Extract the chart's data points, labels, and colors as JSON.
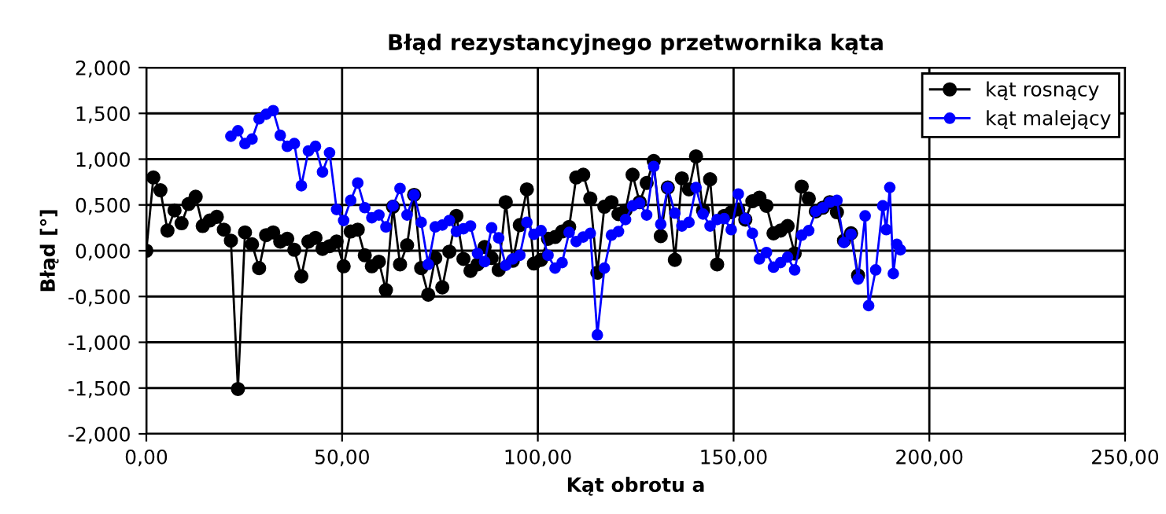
{
  "chart_data": {
    "type": "line",
    "title": "Błąd rezystancyjnego przetwornika kąta",
    "xlabel": "Kąt obrotu a",
    "ylabel": "Błąd [°]",
    "xlim": [
      0,
      250
    ],
    "xticks": [
      {
        "value": 0,
        "label": "0,00"
      },
      {
        "value": 50,
        "label": "50,00"
      },
      {
        "value": 100,
        "label": "100,00"
      },
      {
        "value": 150,
        "label": "150,00"
      },
      {
        "value": 200,
        "label": "200,00"
      },
      {
        "value": 250,
        "label": "250,00"
      }
    ],
    "ylim": [
      -2,
      2
    ],
    "yticks": [
      {
        "value": -2,
        "label": "-2,000"
      },
      {
        "value": -1.5,
        "label": "-1,500"
      },
      {
        "value": -1,
        "label": "-1,000"
      },
      {
        "value": -0.5,
        "label": "-0,500"
      },
      {
        "value": 0,
        "label": "0,000"
      },
      {
        "value": 0.5,
        "label": "0,500"
      },
      {
        "value": 1,
        "label": "1,000"
      },
      {
        "value": 1.5,
        "label": "1,500"
      },
      {
        "value": 2,
        "label": "2,000"
      }
    ],
    "grid": true,
    "legend": "top right",
    "marker": "circle",
    "line_style": "solid",
    "series": [
      {
        "name": "kąt rosnący",
        "color": "#000000",
        "x": [
          0,
          1.8,
          3.6,
          5.4,
          7.2,
          9,
          10.8,
          12.6,
          14.4,
          16.2,
          18,
          19.8,
          21.6,
          23.4,
          25.2,
          27,
          28.8,
          30.6,
          32.4,
          34.2,
          36,
          37.8,
          39.6,
          41.4,
          43.2,
          45,
          46.8,
          48.6,
          50.4,
          52.2,
          54,
          55.8,
          57.6,
          59.4,
          61.2,
          63,
          64.8,
          66.6,
          68.4,
          70.2,
          72,
          73.8,
          75.6,
          77.4,
          79.2,
          81,
          82.8,
          84.6,
          86.4,
          88.2,
          90,
          91.8,
          93.6,
          95.4,
          97.2,
          99,
          100.8,
          102.6,
          104.4,
          106.2,
          108,
          109.8,
          111.6,
          113.4,
          115.2,
          117,
          118.8,
          120.6,
          122.4,
          124.2,
          126,
          127.8,
          129.6,
          131.4,
          133.2,
          135,
          136.8,
          138.6,
          140.4,
          142.2,
          144,
          145.8,
          147.6,
          149.4,
          151.2,
          153,
          154.8,
          156.6,
          158.4,
          160.2,
          162,
          163.8,
          165.6,
          167.4,
          169.2,
          171,
          172.8,
          174.6,
          176.4,
          178.2,
          180,
          181.8
        ],
        "values": [
          0,
          0.8,
          0.66,
          0.22,
          0.44,
          0.3,
          0.51,
          0.59,
          0.27,
          0.33,
          0.37,
          0.23,
          0.11,
          -1.51,
          0.2,
          0.07,
          -0.19,
          0.17,
          0.2,
          0.1,
          0.13,
          0.01,
          -0.28,
          0.1,
          0.14,
          0.02,
          0.05,
          0.1,
          -0.17,
          0.21,
          0.23,
          -0.05,
          -0.17,
          -0.12,
          -0.43,
          0.48,
          -0.15,
          0.06,
          0.61,
          -0.19,
          -0.48,
          -0.08,
          -0.4,
          -0.01,
          0.38,
          -0.09,
          -0.22,
          -0.15,
          0.04,
          -0.08,
          -0.21,
          0.53,
          -0.11,
          0.28,
          0.67,
          -0.14,
          -0.1,
          0.13,
          0.15,
          0.21,
          0.26,
          0.8,
          0.83,
          0.57,
          -0.24,
          0.48,
          0.53,
          0.4,
          0.44,
          0.83,
          0.53,
          0.74,
          0.98,
          0.16,
          0.69,
          -0.1,
          0.79,
          0.67,
          1.03,
          0.44,
          0.78,
          -0.15,
          0.38,
          0.42,
          0.45,
          0.34,
          0.54,
          0.58,
          0.49,
          0.19,
          0.22,
          0.27,
          -0.03,
          0.7,
          0.57,
          0.43,
          0.47,
          0.53,
          0.42,
          0.11,
          0.19,
          -0.27
        ]
      },
      {
        "name": "kąt malejący",
        "color": "#0000ff",
        "x": [
          21.6,
          23.4,
          25.2,
          27,
          28.8,
          30.6,
          32.4,
          34.2,
          36,
          37.8,
          39.6,
          41.4,
          43.2,
          45,
          46.8,
          48.6,
          50.4,
          52.2,
          54,
          55.8,
          57.6,
          59.4,
          61.2,
          63,
          64.8,
          66.6,
          68.4,
          70.2,
          72,
          73.8,
          75.6,
          77.4,
          79.2,
          81,
          82.8,
          84.6,
          86.4,
          88.2,
          90,
          91.8,
          93.6,
          95.4,
          97.2,
          99,
          100.8,
          102.6,
          104.4,
          106.2,
          108,
          109.8,
          111.6,
          113.4,
          115.2,
          117,
          118.8,
          120.6,
          122.4,
          124.2,
          126,
          127.8,
          129.6,
          131.4,
          133.2,
          135,
          136.8,
          138.6,
          140.4,
          142.2,
          144,
          145.8,
          147.6,
          149.4,
          151.2,
          153,
          154.8,
          156.6,
          158.4,
          160.2,
          162,
          163.8,
          165.6,
          167.4,
          169.2,
          171,
          172.8,
          174.6,
          176.4,
          178.2,
          180,
          181.8,
          183.6,
          184.5,
          186.3,
          188.1,
          189,
          189.9,
          190.8,
          191.7,
          192.6
        ],
        "values": [
          1.25,
          1.31,
          1.17,
          1.22,
          1.44,
          1.49,
          1.53,
          1.26,
          1.14,
          1.17,
          0.71,
          1.09,
          1.14,
          0.86,
          1.07,
          0.45,
          0.33,
          0.55,
          0.74,
          0.47,
          0.36,
          0.39,
          0.26,
          0.49,
          0.68,
          0.39,
          0.61,
          0.31,
          -0.15,
          0.26,
          0.28,
          0.33,
          0.21,
          0.24,
          0.27,
          -0.03,
          -0.12,
          0.25,
          0.14,
          -0.16,
          -0.09,
          -0.05,
          0.31,
          0.18,
          0.22,
          -0.05,
          -0.19,
          -0.13,
          0.2,
          0.1,
          0.15,
          0.19,
          -0.92,
          -0.19,
          0.17,
          0.21,
          0.34,
          0.49,
          0.52,
          0.39,
          0.92,
          0.29,
          0.69,
          0.41,
          0.27,
          0.31,
          0.69,
          0.4,
          0.27,
          0.34,
          0.35,
          0.23,
          0.62,
          0.35,
          0.19,
          -0.09,
          -0.02,
          -0.18,
          -0.13,
          -0.07,
          -0.21,
          0.17,
          0.22,
          0.43,
          0.47,
          0.53,
          0.55,
          0.09,
          0.18,
          -0.31,
          0.38,
          -0.6,
          -0.21,
          0.49,
          0.23,
          0.69,
          -0.25,
          0.07,
          0.01
        ]
      }
    ]
  }
}
